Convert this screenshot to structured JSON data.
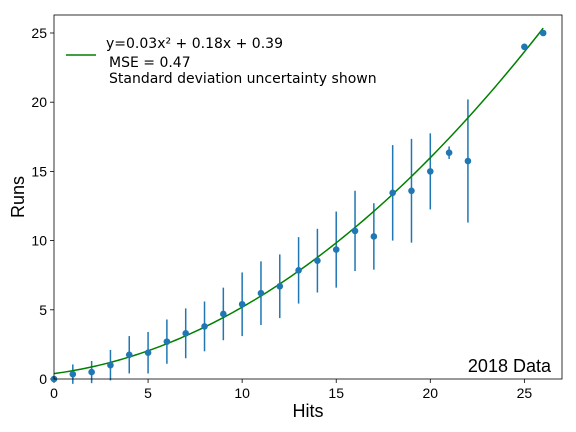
{
  "chart_data": {
    "type": "scatter",
    "xlabel": "Hits",
    "ylabel": "Runs",
    "xlim": [
      0,
      27
    ],
    "ylim": [
      0,
      26.3
    ],
    "xticks": [
      0,
      5,
      10,
      15,
      20,
      25
    ],
    "yticks": [
      0,
      5,
      10,
      15,
      20,
      25
    ],
    "grid": false,
    "legend_placement": "top-left",
    "annotation": "2018 Data",
    "legend": {
      "fit_label": "y=0.03x² + 0.18x + 0.39",
      "mse_text": "MSE = 0.47",
      "note_text": "Standard deviation uncertainty shown"
    },
    "fit": {
      "a": 0.03,
      "b": 0.18,
      "c": 0.39,
      "x_range": [
        0,
        26
      ]
    },
    "points": [
      {
        "x": 0,
        "y": 0.0,
        "err": 0.0
      },
      {
        "x": 1,
        "y": 0.35,
        "err": 0.7
      },
      {
        "x": 2,
        "y": 0.5,
        "err": 0.8
      },
      {
        "x": 3,
        "y": 1.0,
        "err": 1.1
      },
      {
        "x": 4,
        "y": 1.75,
        "err": 1.35
      },
      {
        "x": 5,
        "y": 1.9,
        "err": 1.5
      },
      {
        "x": 6,
        "y": 2.7,
        "err": 1.6
      },
      {
        "x": 7,
        "y": 3.3,
        "err": 1.8
      },
      {
        "x": 8,
        "y": 3.8,
        "err": 1.8
      },
      {
        "x": 9,
        "y": 4.7,
        "err": 1.9
      },
      {
        "x": 10,
        "y": 5.4,
        "err": 2.3
      },
      {
        "x": 11,
        "y": 6.2,
        "err": 2.3
      },
      {
        "x": 12,
        "y": 6.7,
        "err": 2.3
      },
      {
        "x": 13,
        "y": 7.85,
        "err": 2.4
      },
      {
        "x": 14,
        "y": 8.55,
        "err": 2.3
      },
      {
        "x": 15,
        "y": 9.35,
        "err": 2.75
      },
      {
        "x": 16,
        "y": 10.7,
        "err": 2.9
      },
      {
        "x": 17,
        "y": 10.3,
        "err": 2.4
      },
      {
        "x": 18,
        "y": 13.45,
        "err": 3.45
      },
      {
        "x": 19,
        "y": 13.6,
        "err": 3.75
      },
      {
        "x": 20,
        "y": 15.0,
        "err": 2.75
      },
      {
        "x": 21,
        "y": 16.35,
        "err": 0.45
      },
      {
        "x": 22,
        "y": 15.75,
        "err": 4.45
      },
      {
        "x": 25,
        "y": 24.0,
        "err": 0.0
      },
      {
        "x": 26,
        "y": 25.0,
        "err": 0.0
      }
    ],
    "colors": {
      "points": "#1f77b4",
      "fit": "#008000",
      "axes": "#000000"
    }
  }
}
